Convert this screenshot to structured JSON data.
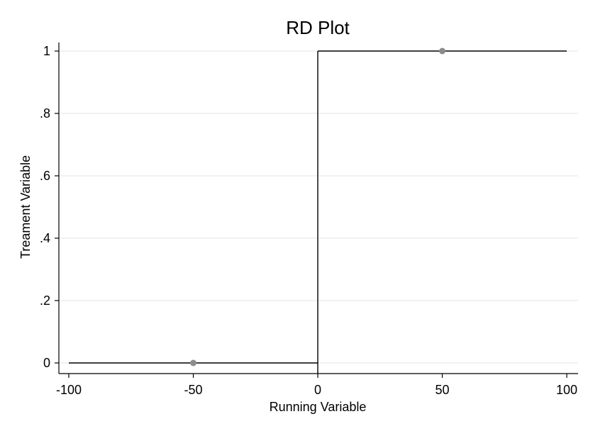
{
  "chart_data": {
    "type": "scatter",
    "title": "RD Plot",
    "xlabel": "Running Variable",
    "ylabel": "Treament Variable",
    "xlim": [
      -100,
      100
    ],
    "ylim": [
      0,
      1
    ],
    "xticks": [
      -100,
      -50,
      0,
      50,
      100
    ],
    "xtick_labels": [
      "-100",
      "-50",
      "0",
      "50",
      "100"
    ],
    "yticks": [
      0,
      0.2,
      0.4,
      0.6,
      0.8,
      1
    ],
    "ytick_labels": [
      "0",
      ".2",
      ".4",
      ".6",
      ".8",
      "1"
    ],
    "grid": true,
    "cutoff": 0,
    "points": [
      {
        "x": -50,
        "y": 0
      },
      {
        "x": 50,
        "y": 1
      }
    ],
    "fit_lines": [
      {
        "x": [
          -100,
          0
        ],
        "y": [
          0,
          0
        ]
      },
      {
        "x": [
          0,
          100
        ],
        "y": [
          1,
          1
        ]
      }
    ],
    "point_color": "#8c8c8c",
    "line_color": "#000000"
  }
}
